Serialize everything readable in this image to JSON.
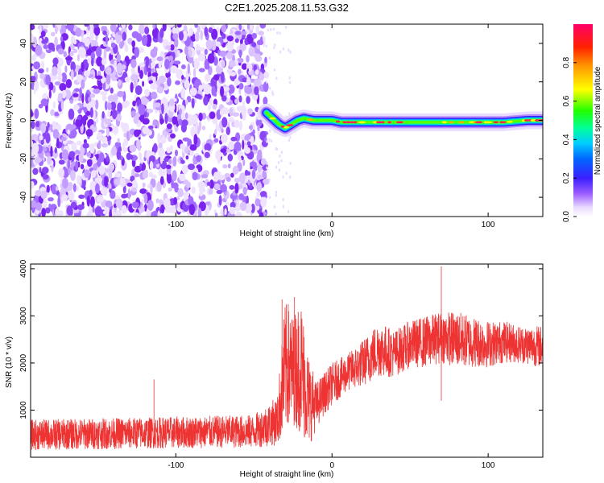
{
  "title": "C2E1.2025.208.11.53.G32",
  "chart_data": [
    {
      "type": "heatmap",
      "xlabel": "Height of straight line (km)",
      "ylabel": "Frequency (Hz)",
      "xlim": [
        -193,
        135
      ],
      "ylim": [
        -50,
        50
      ],
      "xticks": [
        -100,
        0,
        100
      ],
      "xtick_labels": [
        "-100",
        "0",
        "100"
      ],
      "yticks": [
        -40,
        -20,
        0,
        20,
        40
      ],
      "ytick_labels": [
        "-40",
        "-20",
        "0",
        "20",
        "40"
      ],
      "noise_region_x": [
        -193,
        -42
      ],
      "signal_ridge": {
        "x": [
          -42,
          -38,
          -34,
          -30,
          -26,
          -22,
          -18,
          -12,
          -6,
          0,
          6,
          14,
          30,
          50,
          70,
          90,
          110,
          125,
          135
        ],
        "freq": [
          4,
          1,
          -2,
          -4,
          -2,
          0,
          1,
          0,
          0,
          0,
          -1,
          -1,
          -1,
          -1,
          -1,
          -1,
          -1,
          0,
          0
        ]
      },
      "colorbar": {
        "label": "Normalized spectral amplitude",
        "range": [
          0.0,
          1.0
        ],
        "ticks": [
          0.0,
          0.2,
          0.4,
          0.6,
          0.8
        ],
        "tick_labels": [
          "0.0",
          "0.2",
          "0.4",
          "0.6",
          "0.8"
        ]
      },
      "grid": false
    },
    {
      "type": "line",
      "xlabel": "Height of straight line (km)",
      "ylabel": "SNR (10 * v/v)",
      "xlim": [
        -193,
        135
      ],
      "ylim": [
        0,
        4100
      ],
      "xticks": [
        -100,
        0,
        100
      ],
      "xtick_labels": [
        "-100",
        "0",
        "100"
      ],
      "yticks": [
        1000,
        2000,
        3000,
        4000
      ],
      "ytick_labels": [
        "1000",
        "2000",
        "3000",
        "4000"
      ],
      "series_color": "#ee3333",
      "envelope": {
        "x": [
          -193,
          -120,
          -50,
          -35,
          -30,
          -25,
          -20,
          -15,
          -10,
          -5,
          0,
          10,
          20,
          30,
          40,
          50,
          60,
          70,
          80,
          90,
          100,
          110,
          120,
          135
        ],
        "lower": [
          150,
          180,
          200,
          250,
          500,
          700,
          500,
          200,
          600,
          900,
          1100,
          1400,
          1500,
          1700,
          1700,
          1900,
          1900,
          2000,
          1900,
          1900,
          1900,
          2000,
          2000,
          1900
        ],
        "upper": [
          800,
          850,
          900,
          1300,
          3300,
          3000,
          3400,
          2200,
          1600,
          1800,
          2000,
          2200,
          2500,
          2900,
          2700,
          2900,
          3000,
          3100,
          3100,
          3000,
          2900,
          2900,
          2800,
          2800
        ]
      },
      "spikes": [
        {
          "x": -114,
          "y": 1650
        },
        {
          "x": -32,
          "y": 3350
        },
        {
          "x": -28,
          "y": 3250
        },
        {
          "x": -24,
          "y": 3400
        },
        {
          "x": 70,
          "y": 4050
        },
        {
          "x": 70,
          "y": 1200
        }
      ],
      "grid": false
    }
  ]
}
